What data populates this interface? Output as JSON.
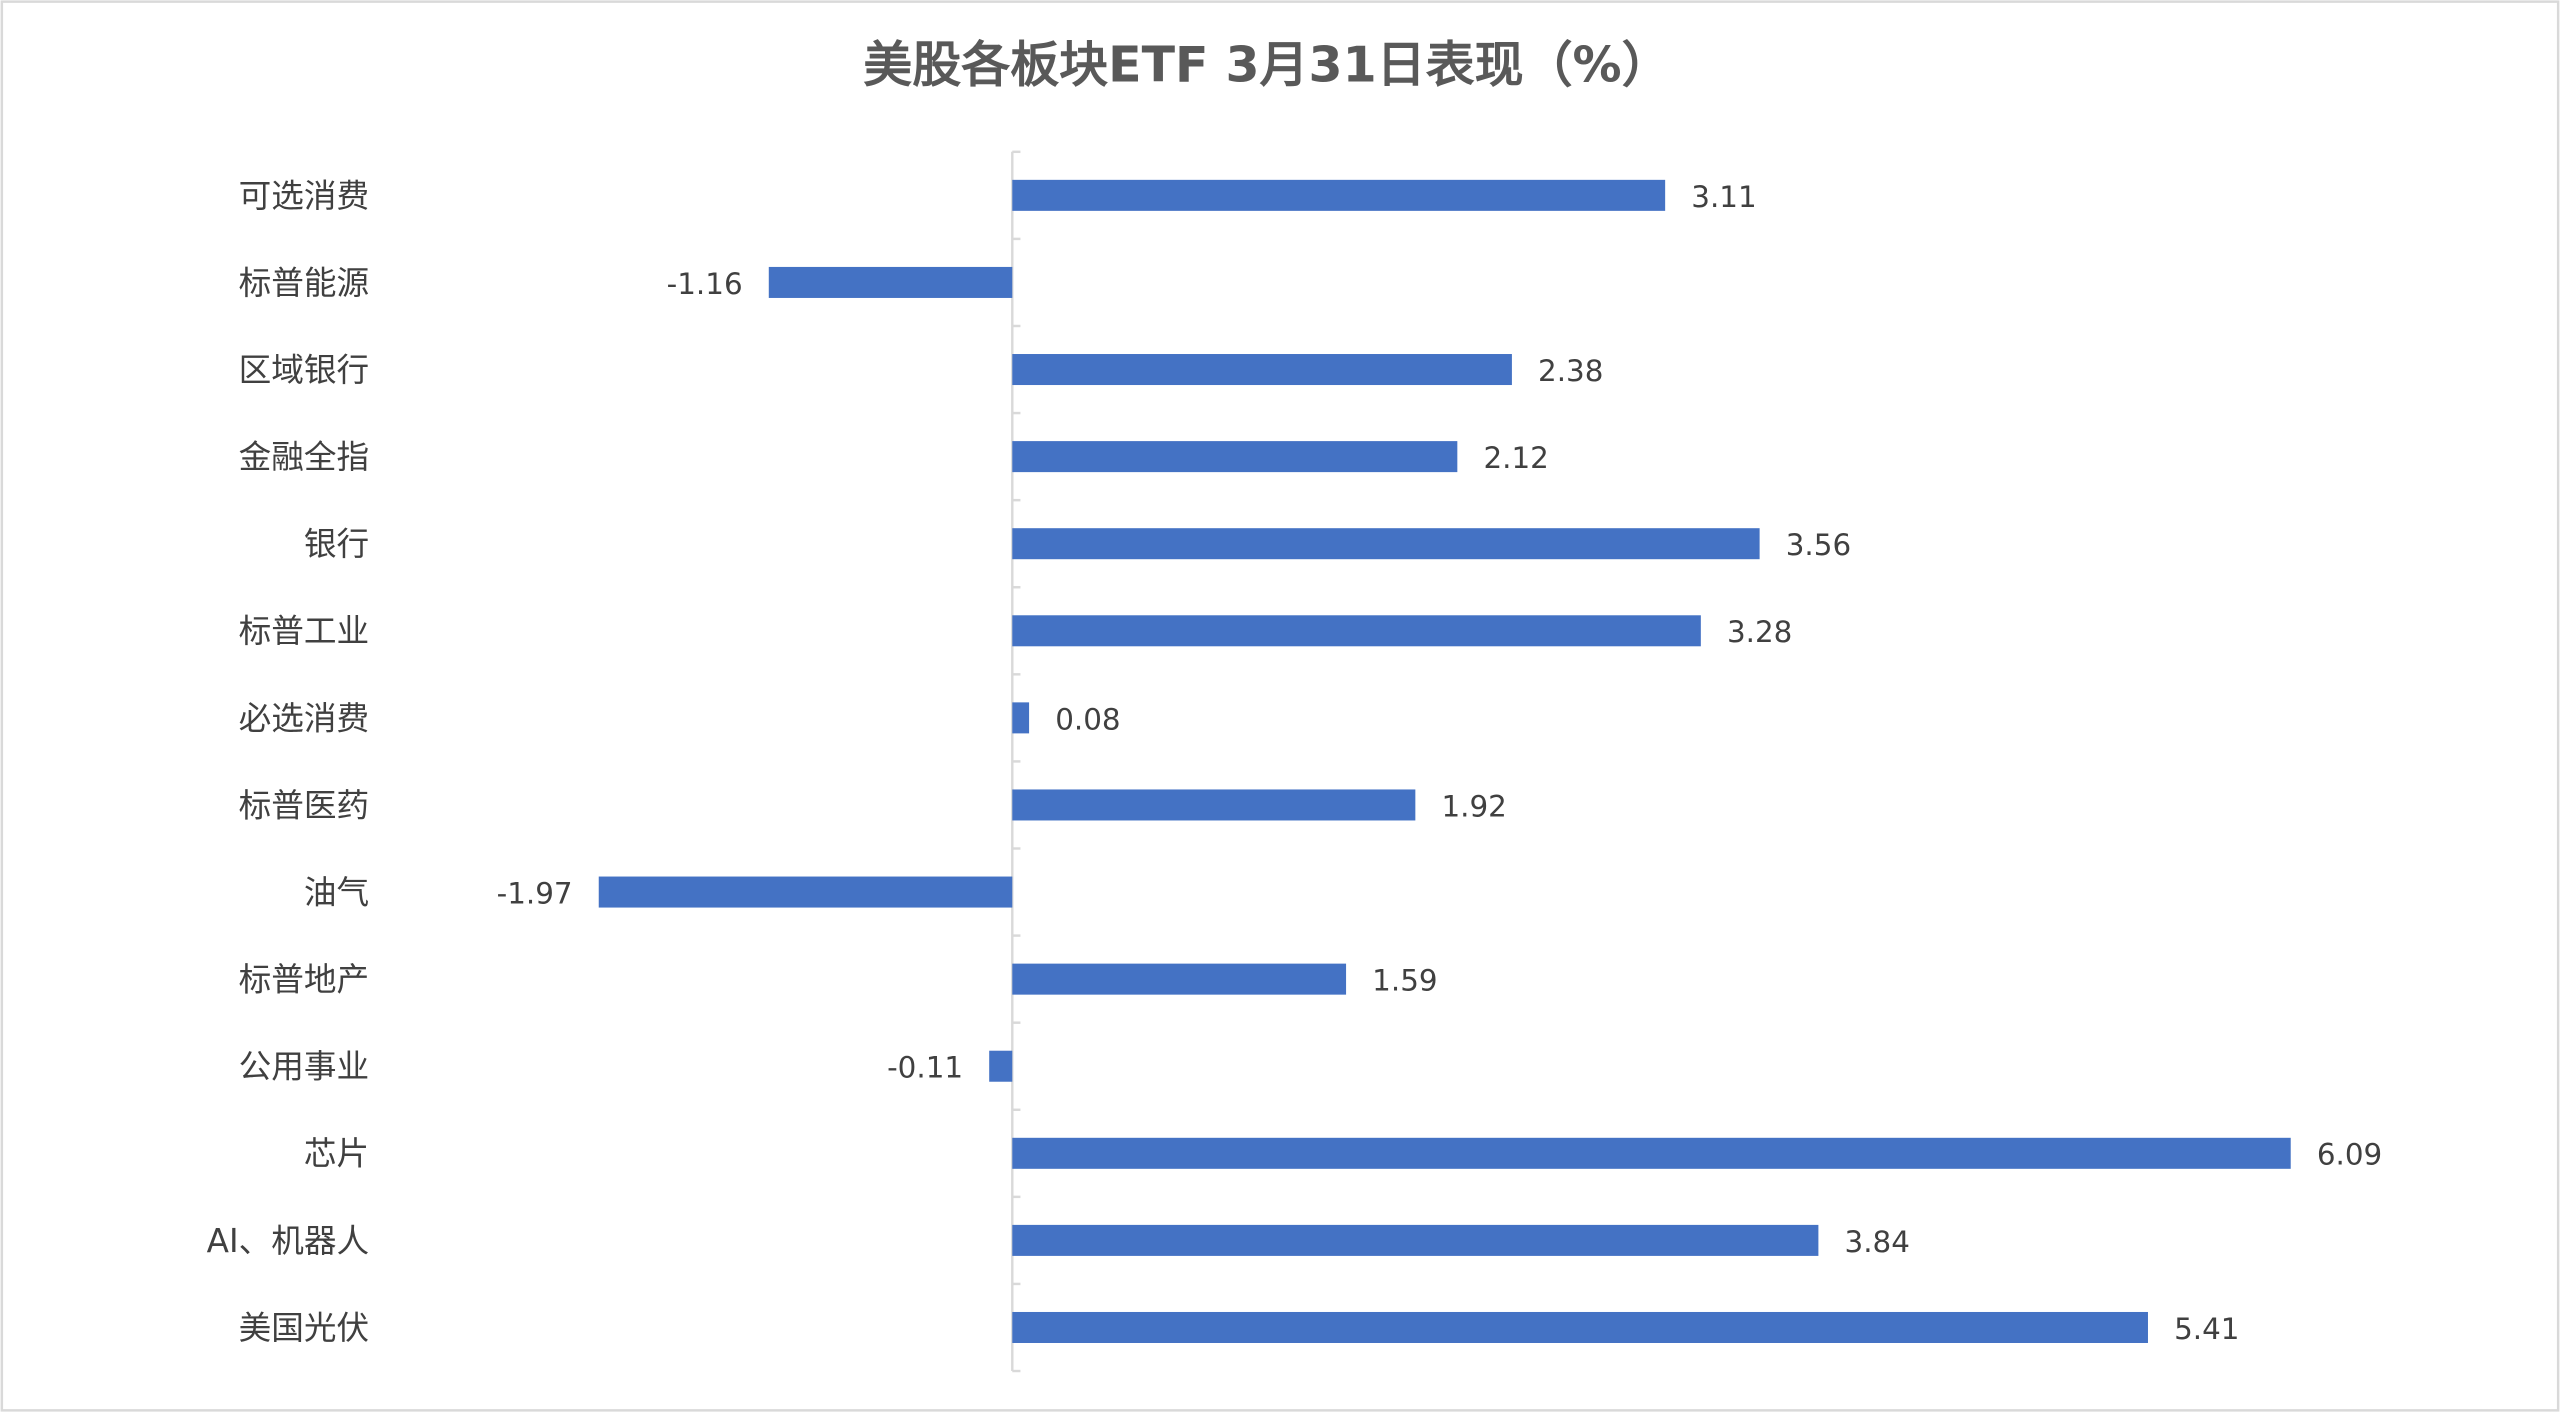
{
  "chart_data": {
    "type": "bar",
    "orientation": "horizontal",
    "title": "美股各板块ETF  3月31日表现（%）",
    "xlabel": "",
    "ylabel": "",
    "categories": [
      "可选消费",
      "标普能源",
      "区域银行",
      "金融全指",
      "银行",
      "标普工业",
      "必选消费",
      "标普医药",
      "油气",
      "标普地产",
      "公用事业",
      "芯片",
      "AI、机器人",
      "美国光伏"
    ],
    "values": [
      3.11,
      -1.16,
      2.38,
      2.12,
      3.56,
      3.28,
      0.08,
      1.92,
      -1.97,
      1.59,
      -0.11,
      6.09,
      3.84,
      5.41
    ],
    "data_labels": [
      "3.11",
      "-1.16",
      "2.38",
      "2.12",
      "3.56",
      "3.28",
      "0.08",
      "1.92",
      "-1.97",
      "1.59",
      "-0.11",
      "6.09",
      "3.84",
      "5.41"
    ],
    "xlim": [
      -2.2,
      7.3
    ],
    "grid": false,
    "legend": "none",
    "bar_color": "#4472c4"
  }
}
